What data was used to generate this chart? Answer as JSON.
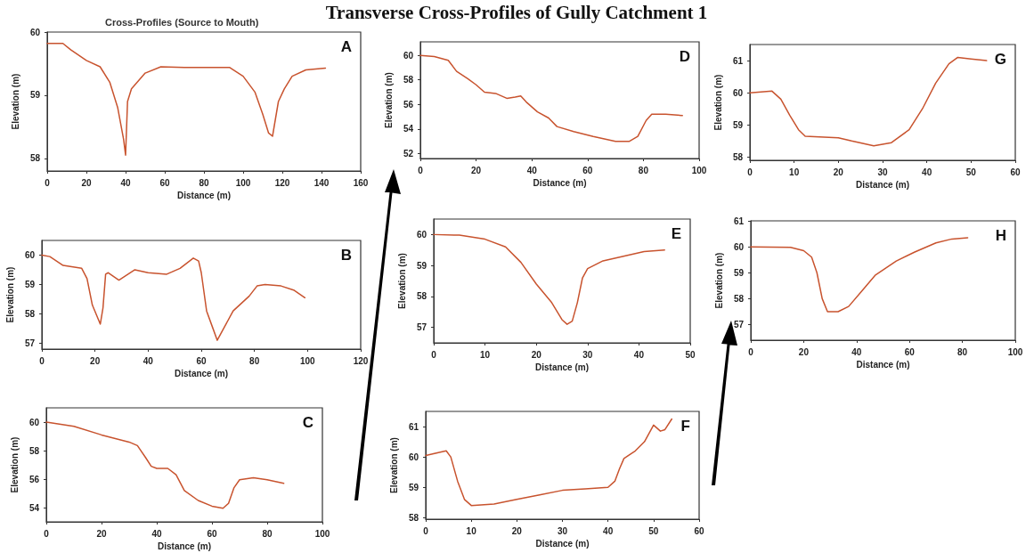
{
  "chart_data": [
    {
      "type": "other",
      "title": "Transverse Cross-Profiles of Gully Catchment 1"
    },
    {
      "type": "line",
      "subtitle": "Cross-Profiles (Source to Mouth)",
      "annotations": [
        "A"
      ],
      "xlabel": "Distance (m)",
      "ylabel": "Elevation (m)",
      "marker": "none",
      "line_style": "solid",
      "xlim": [
        0,
        160
      ],
      "xticks": [
        0,
        20,
        40,
        60,
        80,
        100,
        120,
        140,
        160
      ],
      "ylim": [
        57.8,
        60
      ],
      "yticks": [
        58,
        59,
        60
      ],
      "series": [
        {
          "color": "#c8532e",
          "x": [
            0,
            8,
            12,
            20,
            27,
            32,
            36,
            39,
            40,
            41,
            43,
            50,
            58,
            70,
            93,
            100,
            106,
            110,
            113,
            115,
            118,
            121,
            125,
            132,
            142
          ],
          "values": [
            59.82,
            59.82,
            59.72,
            59.55,
            59.45,
            59.2,
            58.8,
            58.3,
            58.05,
            58.9,
            59.1,
            59.35,
            59.45,
            59.44,
            59.44,
            59.3,
            59.05,
            58.7,
            58.4,
            58.35,
            58.9,
            59.1,
            59.3,
            59.4,
            59.43
          ]
        }
      ]
    },
    {
      "type": "line",
      "annotations": [
        "B"
      ],
      "xlabel": "Distance (m)",
      "ylabel": "Elevation (m)",
      "marker": "none",
      "line_style": "solid",
      "xlim": [
        0,
        120
      ],
      "xticks": [
        0,
        20,
        40,
        60,
        80,
        100,
        120
      ],
      "ylim": [
        56.8,
        60.5
      ],
      "yticks": [
        57,
        58,
        59,
        60
      ],
      "series": [
        {
          "color": "#c8532e",
          "x": [
            0,
            3,
            8,
            15,
            17,
            19,
            22,
            23,
            24,
            25,
            29,
            35,
            40,
            47,
            52,
            57,
            59,
            60,
            62,
            64,
            66,
            69,
            72,
            78,
            81,
            84,
            90,
            95,
            99
          ],
          "values": [
            60,
            59.95,
            59.65,
            59.55,
            59.2,
            58.3,
            57.65,
            58.2,
            59.35,
            59.4,
            59.15,
            59.5,
            59.4,
            59.35,
            59.55,
            59.9,
            59.8,
            59.4,
            58.1,
            57.6,
            57.1,
            57.6,
            58.1,
            58.6,
            58.95,
            59,
            58.95,
            58.8,
            58.55
          ]
        }
      ]
    },
    {
      "type": "line",
      "annotations": [
        "C"
      ],
      "xlabel": "Distance (m)",
      "ylabel": "Elevation (m)",
      "marker": "none",
      "line_style": "solid",
      "xlim": [
        0,
        100
      ],
      "xticks": [
        0,
        20,
        40,
        60,
        80,
        100
      ],
      "ylim": [
        53,
        61
      ],
      "yticks": [
        54,
        56,
        58,
        60
      ],
      "series": [
        {
          "color": "#c8532e",
          "x": [
            0,
            10,
            20,
            30,
            33,
            36,
            38,
            40,
            44,
            47,
            50,
            55,
            60,
            64,
            66,
            68,
            70,
            75,
            80,
            86
          ],
          "values": [
            60,
            59.7,
            59.1,
            58.6,
            58.35,
            57.5,
            56.9,
            56.75,
            56.75,
            56.3,
            55.2,
            54.5,
            54.1,
            53.95,
            54.3,
            55.4,
            55.95,
            56.1,
            55.95,
            55.7
          ]
        }
      ]
    },
    {
      "type": "line",
      "annotations": [
        "D"
      ],
      "xlabel": "Distance (m)",
      "ylabel": "Elevation (m)",
      "marker": "none",
      "line_style": "solid",
      "xlim": [
        0,
        100
      ],
      "xticks": [
        0,
        20,
        40,
        60,
        80,
        100
      ],
      "ylim": [
        51.6,
        61.1
      ],
      "yticks": [
        52,
        54,
        56,
        58,
        60
      ],
      "series": [
        {
          "color": "#c8532e",
          "x": [
            0,
            5,
            10,
            13,
            17,
            20,
            23,
            27,
            31,
            34,
            36,
            38,
            42,
            46,
            49,
            55,
            62,
            70,
            75,
            78,
            81,
            83,
            88,
            94
          ],
          "values": [
            60,
            59.9,
            59.6,
            58.7,
            58.1,
            57.6,
            57,
            56.9,
            56.5,
            56.6,
            56.7,
            56.2,
            55.4,
            54.9,
            54.2,
            53.8,
            53.4,
            53,
            53,
            53.4,
            54.7,
            55.2,
            55.2,
            55.1
          ]
        }
      ]
    },
    {
      "type": "line",
      "annotations": [
        "E"
      ],
      "xlabel": "Distance (m)",
      "ylabel": "Elevation (m)",
      "marker": "none",
      "line_style": "solid",
      "xlim": [
        0,
        50
      ],
      "xticks": [
        0,
        10,
        20,
        30,
        40,
        50
      ],
      "ylim": [
        56.5,
        60.5
      ],
      "yticks": [
        57,
        58,
        59,
        60
      ],
      "series": [
        {
          "color": "#c8532e",
          "x": [
            0,
            5,
            10,
            14,
            17,
            20,
            23,
            25,
            26,
            27,
            28,
            29,
            30,
            33,
            37,
            41,
            45
          ],
          "values": [
            60,
            59.98,
            59.85,
            59.6,
            59.1,
            58.4,
            57.8,
            57.25,
            57.1,
            57.2,
            57.8,
            58.6,
            58.9,
            59.15,
            59.3,
            59.45,
            59.5
          ]
        }
      ]
    },
    {
      "type": "line",
      "annotations": [
        "F"
      ],
      "xlabel": "Distance (m)",
      "ylabel": "Elevation (m)",
      "marker": "none",
      "line_style": "solid",
      "xlim": [
        0,
        60
      ],
      "xticks": [
        0,
        10,
        20,
        30,
        40,
        50,
        60
      ],
      "ylim": [
        57.95,
        61.5
      ],
      "yticks": [
        58,
        59,
        60,
        61
      ],
      "series": [
        {
          "color": "#c8532e",
          "x": [
            0,
            4.5,
            5.5,
            7,
            8.5,
            10,
            15,
            20,
            25,
            30,
            35,
            40,
            41.5,
            42.5,
            43.5,
            46,
            48,
            50,
            51.5,
            52.5,
            54
          ],
          "values": [
            60.05,
            60.2,
            60,
            59.2,
            58.6,
            58.4,
            58.45,
            58.6,
            58.75,
            58.9,
            58.95,
            59,
            59.2,
            59.6,
            59.95,
            60.2,
            60.5,
            61.05,
            60.85,
            60.9,
            61.25
          ]
        }
      ]
    },
    {
      "type": "line",
      "annotations": [
        "G"
      ],
      "xlabel": "Distance (m)",
      "ylabel": "Elevation (m)",
      "marker": "none",
      "line_style": "solid",
      "xlim": [
        0,
        60
      ],
      "xticks": [
        0,
        10,
        20,
        30,
        40,
        50,
        60
      ],
      "ylim": [
        57.9,
        61.5
      ],
      "yticks": [
        58,
        59,
        60,
        61
      ],
      "series": [
        {
          "color": "#c8532e",
          "x": [
            0,
            5,
            7,
            9,
            11,
            12.5,
            20,
            23,
            28,
            32,
            36,
            39,
            42,
            45,
            47,
            50,
            53.5
          ],
          "values": [
            60,
            60.05,
            59.8,
            59.3,
            58.85,
            58.65,
            58.6,
            58.5,
            58.35,
            58.45,
            58.85,
            59.5,
            60.3,
            60.9,
            61.1,
            61.05,
            61
          ]
        }
      ]
    },
    {
      "type": "line",
      "annotations": [
        "H"
      ],
      "xlabel": "Distance (m)",
      "ylabel": "Elevation (m)",
      "marker": "none",
      "line_style": "solid",
      "xlim": [
        0,
        100
      ],
      "xticks": [
        0,
        20,
        40,
        60,
        80,
        100
      ],
      "ylim": [
        56.4,
        61
      ],
      "yticks": [
        57,
        58,
        59,
        60,
        61
      ],
      "series": [
        {
          "color": "#c8532e",
          "x": [
            0,
            15,
            20,
            23,
            25,
            27,
            29,
            33,
            37,
            42,
            47,
            55,
            62,
            70,
            76,
            82
          ],
          "values": [
            60,
            59.98,
            59.85,
            59.6,
            59,
            58,
            57.5,
            57.5,
            57.7,
            58.3,
            58.9,
            59.45,
            59.8,
            60.15,
            60.3,
            60.35
          ]
        }
      ]
    }
  ]
}
